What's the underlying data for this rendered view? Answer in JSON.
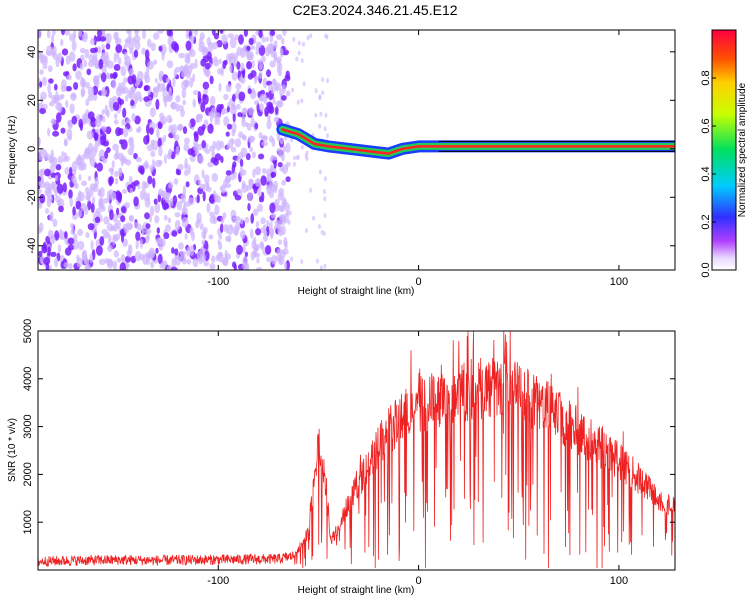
{
  "title": "C2E3.2024.346.21.45.E12",
  "colors": {
    "snr_line": "#ee2222",
    "signal_core": "#ff2222",
    "signal_band": "#22cc55",
    "noise": "#7a1fff",
    "noise_light": "#cdb3ff"
  },
  "chart_data": [
    {
      "type": "heatmap",
      "title": "C2E3.2024.346.21.45.E12",
      "xlabel": "Height of straight line (km)",
      "ylabel": "Frequency (Hz)",
      "xlim": [
        -190,
        128
      ],
      "ylim": [
        -50,
        49
      ],
      "x_ticks": [
        -100,
        0,
        100
      ],
      "y_ticks": [
        -40,
        -20,
        0,
        20,
        40
      ],
      "colorbar": {
        "label": "Normalized spectral amplitude",
        "range": [
          0,
          1
        ],
        "ticks": [
          "0.0",
          "0.2",
          "0.4",
          "0.6",
          "0.8"
        ]
      },
      "signal_track": [
        {
          "x": -68,
          "y": 8
        },
        {
          "x": -60,
          "y": 6
        },
        {
          "x": -52,
          "y": 2
        },
        {
          "x": -45,
          "y": 1
        },
        {
          "x": -35,
          "y": 0
        },
        {
          "x": -25,
          "y": -1
        },
        {
          "x": -15,
          "y": -2
        },
        {
          "x": -8,
          "y": 0
        },
        {
          "x": 0,
          "y": 1
        },
        {
          "x": 8,
          "y": 1
        },
        {
          "x": 128,
          "y": 1
        }
      ],
      "noise_region": [
        -190,
        -65
      ]
    },
    {
      "type": "line",
      "xlabel": "Height of straight line (km)",
      "ylabel": "SNR (10 * v/v)",
      "xlim": [
        -190,
        128
      ],
      "ylim": [
        0,
        5000
      ],
      "x_ticks": [
        -100,
        0,
        100
      ],
      "y_ticks": [
        1000,
        2000,
        3000,
        4000,
        5000
      ],
      "series": [
        {
          "x": [
            -190,
            -170,
            -150,
            -130,
            -110,
            -90,
            -70,
            -62,
            -55,
            -50,
            -46,
            -44,
            -40,
            -35,
            -30,
            -25,
            -20,
            -15,
            -10,
            -5,
            0,
            5,
            10,
            20,
            30,
            40,
            45,
            50,
            60,
            70,
            80,
            90,
            100,
            110,
            120,
            128
          ],
          "y": [
            180,
            200,
            210,
            200,
            210,
            220,
            230,
            300,
            800,
            2600,
            1700,
            600,
            900,
            1400,
            1800,
            2200,
            2600,
            2900,
            3100,
            3300,
            3400,
            3500,
            3600,
            3700,
            3800,
            3800,
            3900,
            3700,
            3500,
            3200,
            2900,
            2600,
            2300,
            1900,
            1500,
            1300
          ]
        }
      ]
    }
  ]
}
